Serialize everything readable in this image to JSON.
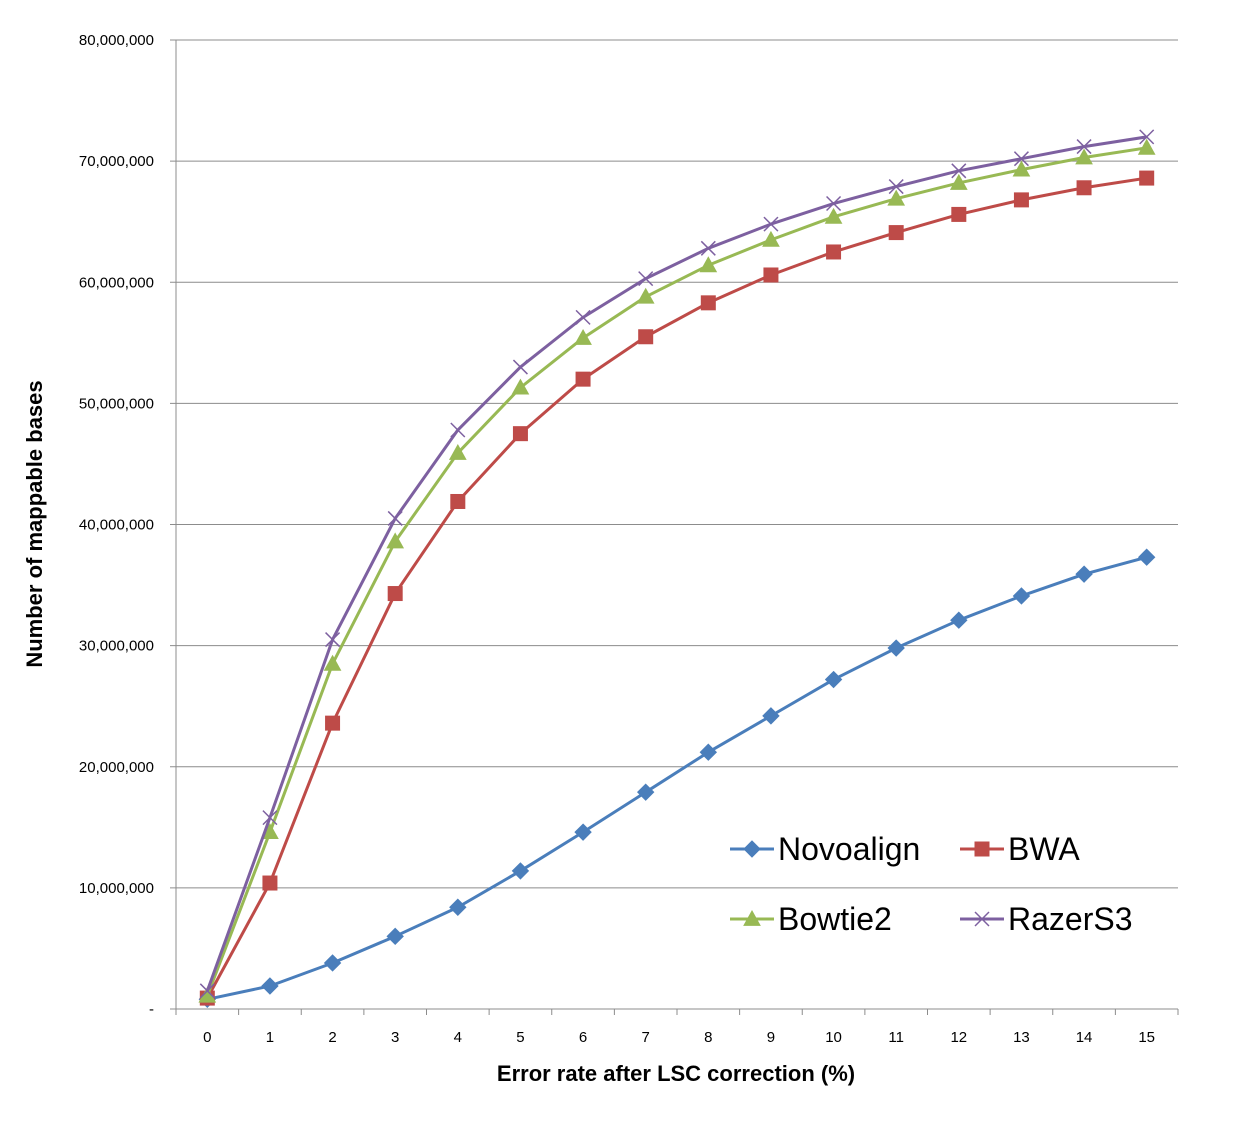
{
  "chart_data": {
    "type": "line",
    "title": "",
    "xlabel": "Error rate after LSC correction (%)",
    "ylabel": "Number of mappable bases",
    "x": [
      0,
      1,
      2,
      3,
      4,
      5,
      6,
      7,
      8,
      9,
      10,
      11,
      12,
      13,
      14,
      15
    ],
    "x_tick_labels": [
      "0",
      "1",
      "2",
      "3",
      "4",
      "5",
      "6",
      "7",
      "8",
      "9",
      "10",
      "11",
      "12",
      "13",
      "14",
      "15"
    ],
    "ylim": [
      0,
      80000000
    ],
    "y_ticks": [
      0,
      10000000,
      20000000,
      30000000,
      40000000,
      50000000,
      60000000,
      70000000,
      80000000
    ],
    "y_tick_labels": [
      "-",
      "10,000,000",
      "20,000,000",
      "30,000,000",
      "40,000,000",
      "50,000,000",
      "60,000,000",
      "70,000,000",
      "80,000,000"
    ],
    "grid": "horizontal",
    "legend_position": "bottom-right, inside plot, two columns",
    "series": [
      {
        "name": "Novoalign",
        "color": "#4a7ebb",
        "marker": "diamond",
        "values": [
          800000,
          1900000,
          3800000,
          6000000,
          8400000,
          11400000,
          14600000,
          17900000,
          21200000,
          24200000,
          27200000,
          29800000,
          32100000,
          34100000,
          35900000,
          37300000
        ]
      },
      {
        "name": "BWA",
        "color": "#be4b48",
        "marker": "square",
        "values": [
          900000,
          10400000,
          23600000,
          34300000,
          41900000,
          47500000,
          52000000,
          55500000,
          58300000,
          60600000,
          62500000,
          64100000,
          65600000,
          66800000,
          67800000,
          68600000
        ]
      },
      {
        "name": "Bowtie2",
        "color": "#98b954",
        "marker": "triangle",
        "values": [
          1100000,
          14600000,
          28500000,
          38600000,
          45900000,
          51300000,
          55400000,
          58800000,
          61400000,
          63500000,
          65400000,
          66900000,
          68200000,
          69300000,
          70300000,
          71100000
        ]
      },
      {
        "name": "RazerS3",
        "color": "#7d60a0",
        "marker": "x",
        "values": [
          1500000,
          15800000,
          30500000,
          40500000,
          47800000,
          53000000,
          57100000,
          60300000,
          62800000,
          64800000,
          66500000,
          67900000,
          69200000,
          70200000,
          71200000,
          72000000
        ]
      }
    ]
  }
}
